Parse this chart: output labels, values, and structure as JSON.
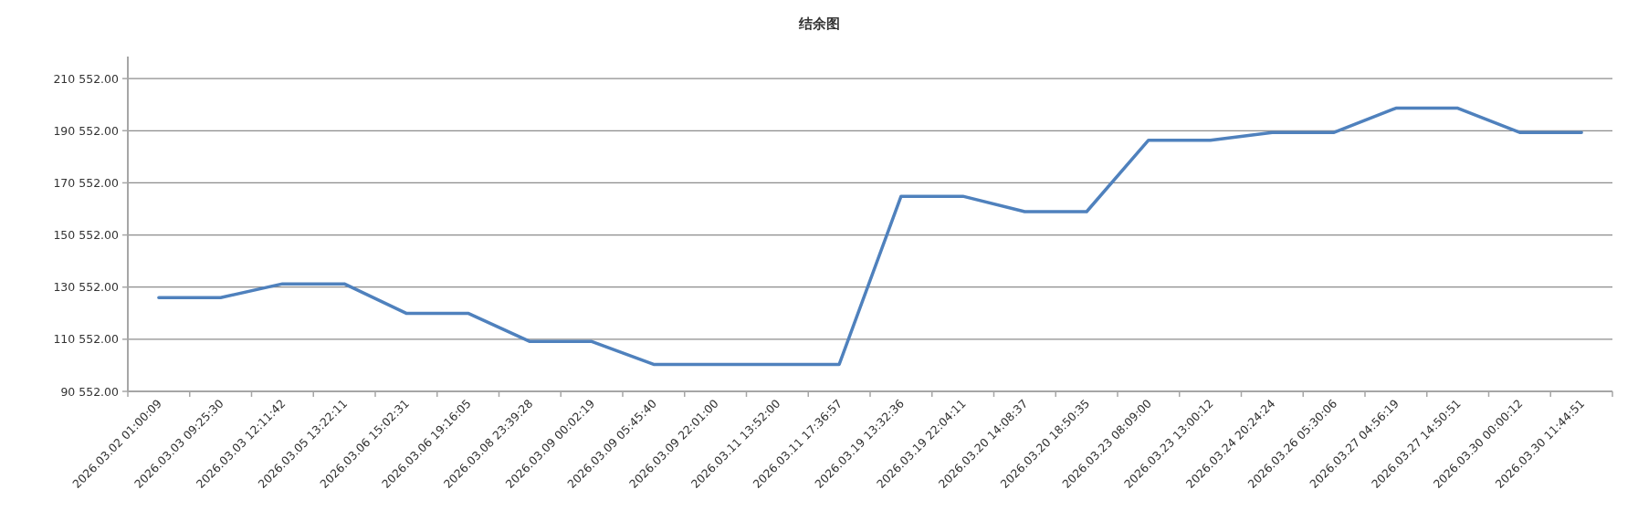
{
  "chart_data": {
    "type": "line",
    "title": "结余图",
    "categories": [
      "2026.03.02 01:00:09",
      "2026.03.03 09:25:30",
      "2026.03.03 12:11:42",
      "2026.03.05 13:22:11",
      "2026.03.06 15:02:31",
      "2026.03.06 19:16:05",
      "2026.03.08 23:39:28",
      "2026.03.09 00:02:19",
      "2026.03.09 05:45:40",
      "2026.03.09 22:01:00",
      "2026.03.11 13:52:00",
      "2026.03.11 17:36:57",
      "2026.03.19 13:32:36",
      "2026.03.19 22:04:11",
      "2026.03.20 14:08:37",
      "2026.03.20 18:50:35",
      "2026.03.23 08:09:00",
      "2026.03.23 13:00:12",
      "2026.03.24 20:24:24",
      "2026.03.26 05:30:06",
      "2026.03.27 04:56:19",
      "2026.03.27 14:50:51",
      "2026.03.30 00:00:12",
      "2026.03.30 11:44:51"
    ],
    "series": [
      {
        "color": "#4f81bd",
        "values": [
          126500,
          126500,
          131800,
          131800,
          120500,
          120500,
          109700,
          109700,
          100900,
          100900,
          100900,
          100900,
          165400,
          165400,
          159500,
          159500,
          186900,
          186900,
          189900,
          189900,
          199200,
          199200,
          189900,
          189900
        ]
      }
    ],
    "ylim": [
      90552,
      219000
    ],
    "yticks": [
      {
        "value": 90552,
        "label": "90 552.00"
      },
      {
        "value": 110552,
        "label": "110 552.00"
      },
      {
        "value": 130552,
        "label": "130 552.00"
      },
      {
        "value": 150552,
        "label": "150 552.00"
      },
      {
        "value": 170552,
        "label": "170 552.00"
      },
      {
        "value": 190552,
        "label": "190 552.00"
      },
      {
        "value": 210552,
        "label": "210 552.00"
      }
    ],
    "grid": "y",
    "marker": "none",
    "line_style": "solid"
  }
}
